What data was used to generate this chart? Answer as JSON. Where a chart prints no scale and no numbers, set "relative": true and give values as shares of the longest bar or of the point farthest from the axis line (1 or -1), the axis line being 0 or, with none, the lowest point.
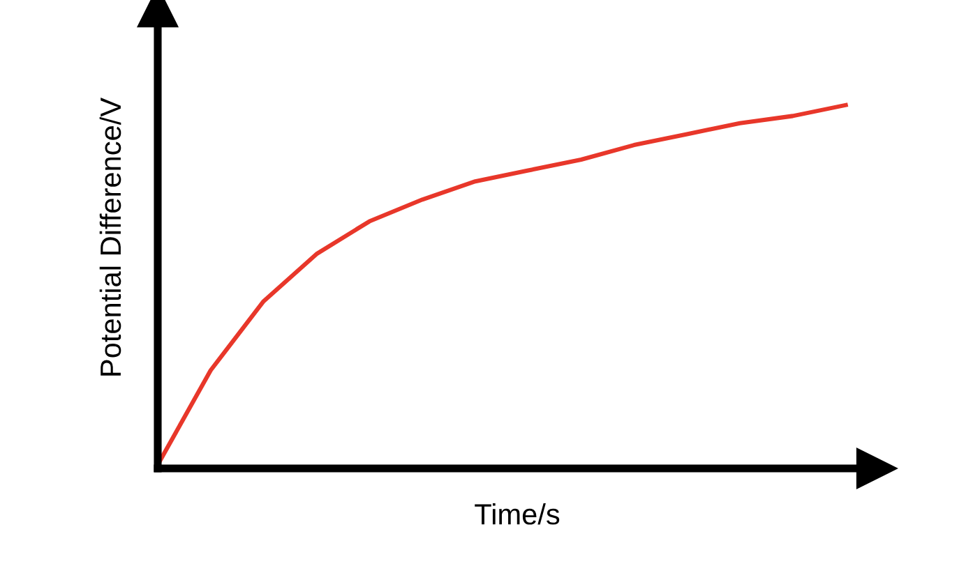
{
  "chart_data": {
    "type": "line",
    "relative": true,
    "xlabel": "Time/s",
    "ylabel": "Potential Difference/V",
    "categories": [
      null,
      null,
      null,
      null,
      null,
      null,
      null,
      null,
      null,
      null,
      null,
      null,
      null,
      null
    ],
    "series": [
      {
        "color": "#e8372a",
        "values": [
          0.01,
          0.27,
          0.46,
          0.59,
          0.68,
          0.74,
          0.79,
          0.82,
          0.85,
          0.89,
          0.92,
          0.95,
          0.97,
          1
        ]
      }
    ],
    "legend": false,
    "marker": "none",
    "line_style": "solid"
  }
}
